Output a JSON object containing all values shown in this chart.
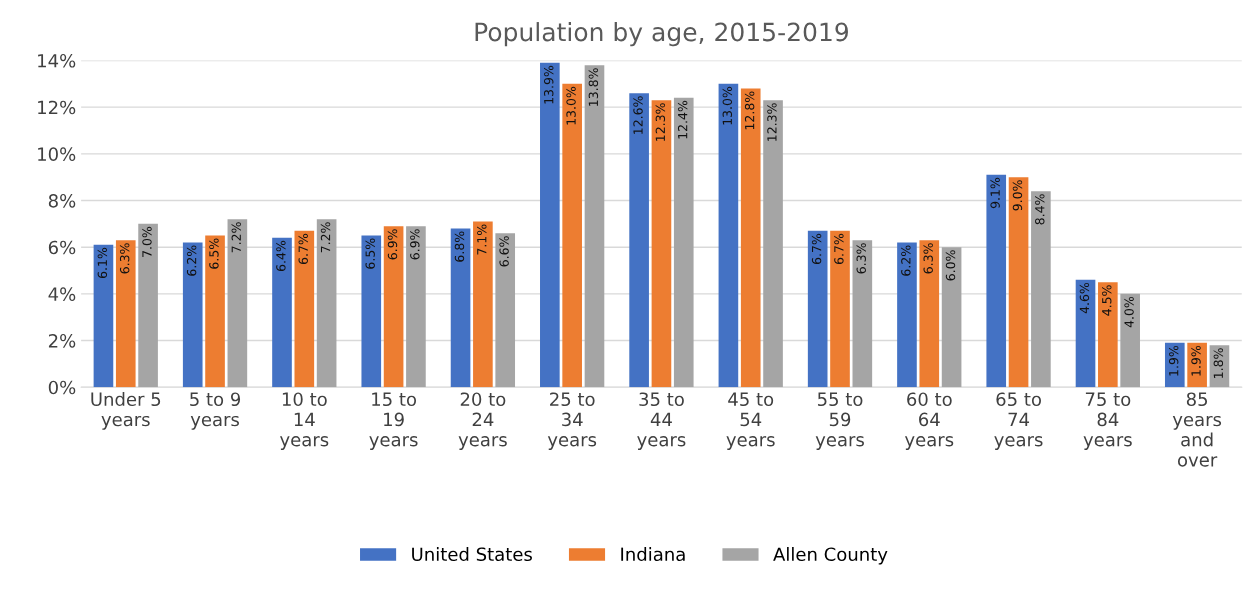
{
  "chart_data": {
    "type": "bar",
    "title": "Population by age, 2015-2019",
    "categories": [
      "Under 5\nyears",
      "5 to 9\nyears",
      "10 to\n14\nyears",
      "15 to\n19\nyears",
      "20 to\n24\nyears",
      "25 to\n34\nyears",
      "35 to\n44\nyears",
      "45 to\n54\nyears",
      "55 to\n59\nyears",
      "60 to\n64\nyears",
      "65 to\n74\nyears",
      "75 to\n84\nyears",
      "85\nyears\nand\nover"
    ],
    "series": [
      {
        "name": "United States",
        "color": "#4472c4",
        "values": [
          6.1,
          6.2,
          6.4,
          6.5,
          6.8,
          13.9,
          12.6,
          13.0,
          6.7,
          6.2,
          9.1,
          4.6,
          1.9
        ],
        "value_labels": [
          "6.1%",
          "6.2%",
          "6.4%",
          "6.5%",
          "6.8%",
          "13.9%",
          "12.6%",
          "13.0%",
          "6.7%",
          "6.2%",
          "9.1%",
          "4.6%",
          "1.9%"
        ]
      },
      {
        "name": "Indiana",
        "color": "#ed7d31",
        "values": [
          6.3,
          6.5,
          6.7,
          6.9,
          7.1,
          13.0,
          12.3,
          12.8,
          6.7,
          6.3,
          9.0,
          4.5,
          1.9
        ],
        "value_labels": [
          "6.3%",
          "6.5%",
          "6.7%",
          "6.9%",
          "7.1%",
          "13.0%",
          "12.3%",
          "12.8%",
          "6.7%",
          "6.3%",
          "9.0%",
          "4.5%",
          "1.9%"
        ]
      },
      {
        "name": "Allen County",
        "color": "#a5a5a5",
        "values": [
          7.0,
          7.2,
          7.2,
          6.9,
          6.6,
          13.8,
          12.4,
          12.3,
          6.3,
          6.0,
          8.4,
          4.0,
          1.8
        ],
        "value_labels": [
          "7.0%",
          "7.2%",
          "7.2%",
          "6.9%",
          "6.6%",
          "13.8%",
          "12.4%",
          "12.3%",
          "6.3%",
          "6.0%",
          "8.4%",
          "4.0%",
          "1.8%"
        ]
      }
    ],
    "ylim": [
      0,
      14
    ],
    "yticks": [
      {
        "value": 0,
        "label": "0%"
      },
      {
        "value": 2,
        "label": "2%"
      },
      {
        "value": 4,
        "label": "4%"
      },
      {
        "value": 6,
        "label": "6%"
      },
      {
        "value": 8,
        "label": "8%"
      },
      {
        "value": 10,
        "label": "10%"
      },
      {
        "value": 12,
        "label": "12%"
      },
      {
        "value": 14,
        "label": "14%"
      }
    ],
    "grid": "y",
    "legend": "bottom"
  }
}
